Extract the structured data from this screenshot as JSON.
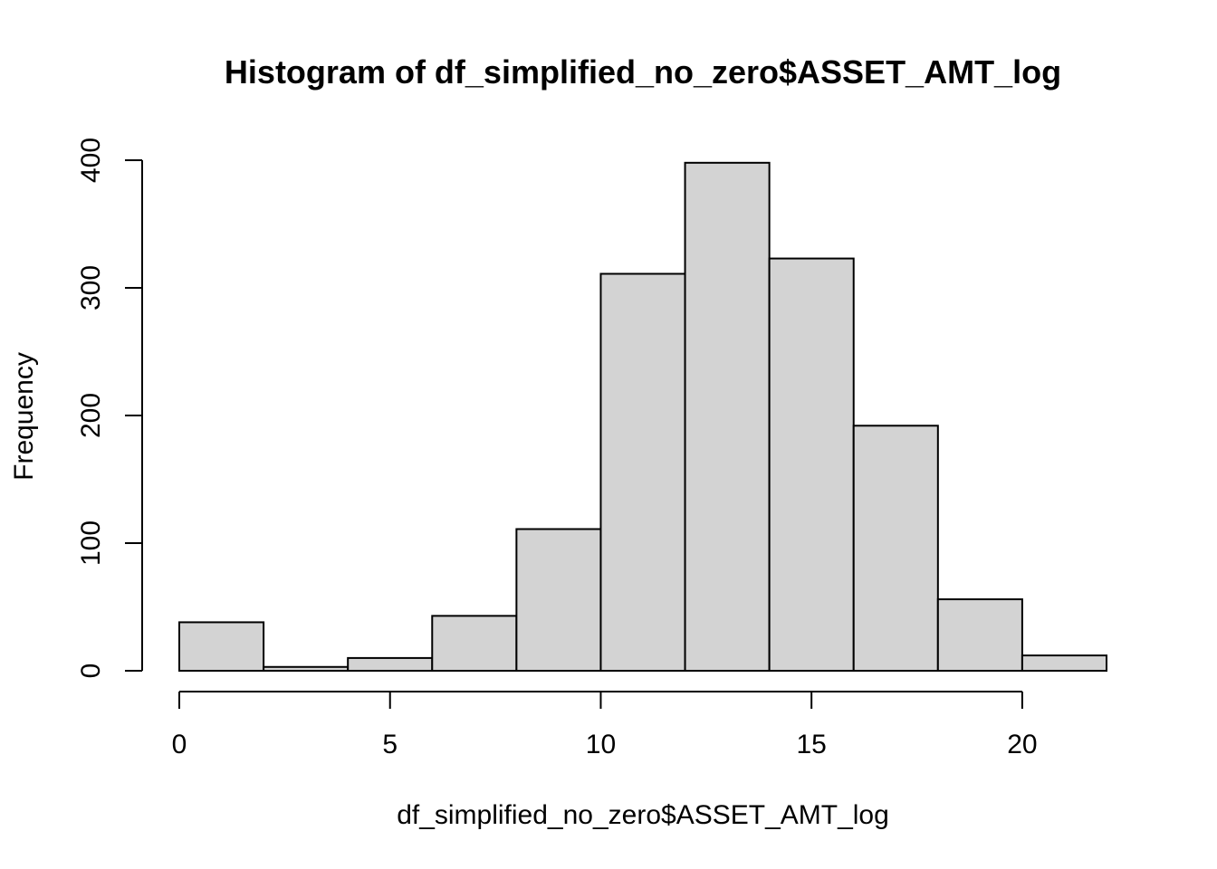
{
  "chart_data": {
    "type": "bar",
    "title": "Histogram of df_simplified_no_zero$ASSET_AMT_log",
    "xlabel": "df_simplified_no_zero$ASSET_AMT_log",
    "ylabel": "Frequency",
    "bins": [
      {
        "x0": 0,
        "x1": 2,
        "count": 38
      },
      {
        "x0": 2,
        "x1": 4,
        "count": 3
      },
      {
        "x0": 4,
        "x1": 6,
        "count": 10
      },
      {
        "x0": 6,
        "x1": 8,
        "count": 43
      },
      {
        "x0": 8,
        "x1": 10,
        "count": 111
      },
      {
        "x0": 10,
        "x1": 12,
        "count": 311
      },
      {
        "x0": 12,
        "x1": 14,
        "count": 398
      },
      {
        "x0": 14,
        "x1": 16,
        "count": 323
      },
      {
        "x0": 16,
        "x1": 18,
        "count": 192
      },
      {
        "x0": 18,
        "x1": 20,
        "count": 56
      },
      {
        "x0": 20,
        "x1": 22,
        "count": 12
      }
    ],
    "x_ticks": [
      0,
      5,
      10,
      15,
      20
    ],
    "y_ticks": [
      0,
      100,
      200,
      300,
      400
    ],
    "xlim": [
      0,
      22
    ],
    "ylim": [
      0,
      400
    ],
    "grid": false,
    "legend": "none",
    "bar_color": "#d3d3d3",
    "edge_color": "#000000"
  }
}
